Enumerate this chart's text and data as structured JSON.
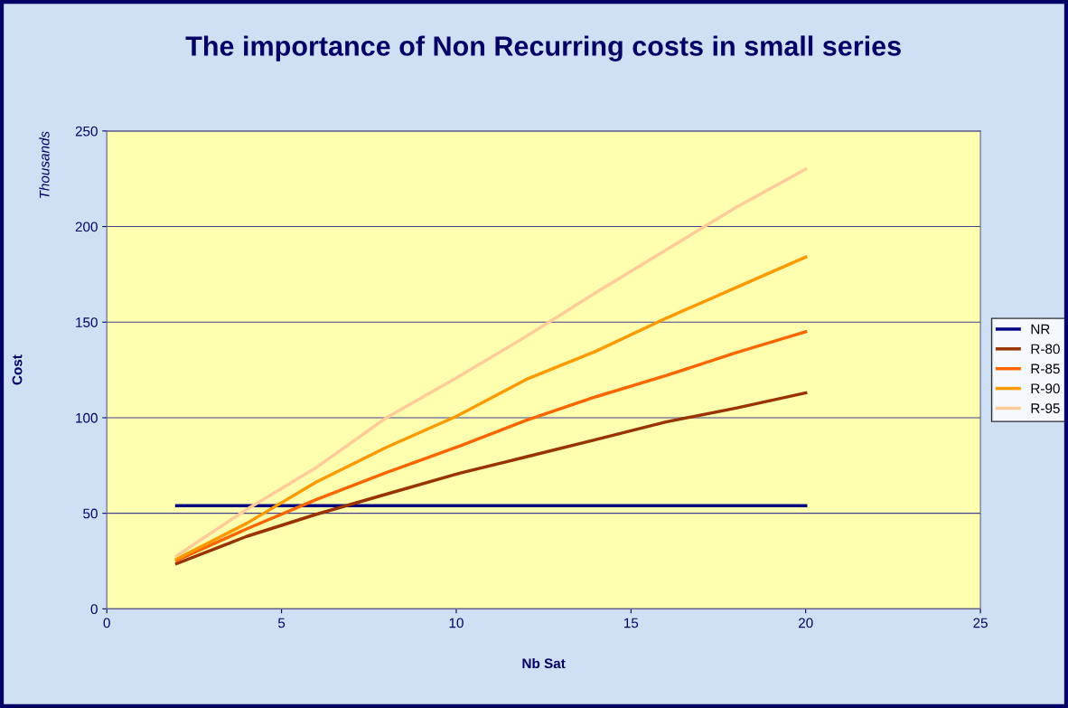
{
  "chart_data": {
    "type": "line",
    "title": "The importance of Non Recurring costs in small series",
    "xlabel": "Nb Sat",
    "ylabel": "Cost",
    "annotations": [
      "Thousands"
    ],
    "x": [
      2,
      4,
      6,
      8,
      10,
      12,
      14,
      16,
      18,
      20
    ],
    "series": [
      {
        "name": "NR",
        "color": "#000080",
        "values": [
          54,
          54,
          54,
          54,
          54,
          54,
          54,
          54,
          54,
          54
        ]
      },
      {
        "name": "R-80",
        "color": "#993300",
        "values": [
          23.7,
          37.9,
          49.5,
          60,
          70.5,
          79.5,
          88.6,
          97.8,
          105,
          113
        ]
      },
      {
        "name": "R-85",
        "color": "#ff6600",
        "values": [
          25.4,
          41.8,
          57.2,
          71.3,
          84.5,
          98.6,
          111,
          122,
          134,
          145
        ]
      },
      {
        "name": "R-90",
        "color": "#ff9900",
        "values": [
          26.1,
          44.7,
          66.4,
          84.5,
          100.7,
          120,
          134.8,
          152,
          168,
          184
        ]
      },
      {
        "name": "R-95",
        "color": "#ffcc99",
        "values": [
          27.8,
          52,
          74,
          100,
          120.8,
          142.5,
          165.5,
          187.7,
          210,
          230
        ]
      }
    ],
    "xlim": [
      0,
      25
    ],
    "xticks": [
      0,
      5,
      10,
      15,
      20,
      25
    ],
    "ylim": [
      0,
      250
    ],
    "yticks": [
      0,
      50,
      100,
      150,
      200,
      250
    ],
    "grid": "y",
    "legend": "right",
    "marker": "none",
    "line_style": "solid"
  }
}
